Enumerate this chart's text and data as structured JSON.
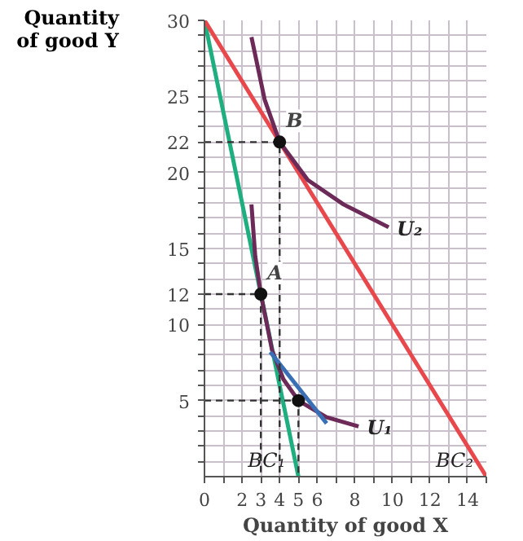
{
  "chart_data": {
    "type": "line",
    "xlabel": "Quantity of good X",
    "ylabel": "Quantity of good Y",
    "xlim": [
      0,
      15
    ],
    "ylim": [
      0,
      30
    ],
    "xticks": [
      {
        "value": 0,
        "label": "0"
      },
      {
        "value": 1,
        "label": null
      },
      2,
      3,
      4,
      5,
      6,
      {
        "value": 7,
        "label": null
      },
      8,
      {
        "value": 9,
        "label": null
      },
      10,
      {
        "value": 11,
        "label": null
      },
      12,
      {
        "value": 13,
        "label": null
      },
      14,
      {
        "value": 15,
        "label": null
      }
    ],
    "yticks": [
      {
        "value": 1,
        "label": null
      },
      {
        "value": 2,
        "label": null
      },
      {
        "value": 3,
        "label": null
      },
      {
        "value": 4,
        "label": null
      },
      5,
      {
        "value": 6,
        "label": null
      },
      {
        "value": 7,
        "label": null
      },
      {
        "value": 8,
        "label": null
      },
      {
        "value": 9,
        "label": null
      },
      10,
      {
        "value": 11,
        "label": null
      },
      12,
      {
        "value": 13,
        "label": null
      },
      {
        "value": 14,
        "label": null
      },
      15,
      {
        "value": 16,
        "label": null
      },
      {
        "value": 17,
        "label": null
      },
      {
        "value": 18,
        "label": null
      },
      {
        "value": 19,
        "label": null
      },
      20,
      {
        "value": 21,
        "label": null
      },
      22,
      {
        "value": 23,
        "label": null
      },
      {
        "value": 24,
        "label": null
      },
      25,
      {
        "value": 26,
        "label": null
      },
      {
        "value": 27,
        "label": null
      },
      {
        "value": 28,
        "label": null
      },
      {
        "value": 29,
        "label": null
      },
      30
    ],
    "grid": true,
    "series": [
      {
        "name": "BC₁",
        "color": "#1fae7f",
        "x": [
          0,
          5
        ],
        "values": [
          30,
          0
        ]
      },
      {
        "name": "BC₂",
        "color": "#e8474c",
        "x": [
          0,
          15
        ],
        "values": [
          30,
          0
        ]
      },
      {
        "name": "U₂",
        "color": "#6b2a57",
        "x": [
          2.5,
          3.2,
          4,
          5.5,
          7.4,
          9.8
        ],
        "values": [
          28.9,
          24.8,
          22,
          19.5,
          17.9,
          16.4
        ]
      },
      {
        "name": "U₁",
        "color": "#6b2a57",
        "x": [
          2.5,
          2.7,
          3,
          3.6,
          4.2,
          5,
          6.5,
          8.2
        ],
        "values": [
          17.9,
          14.5,
          12,
          8.3,
          6.4,
          5,
          3.9,
          3.3
        ]
      },
      {
        "color": "#3a6fb5",
        "x": [
          3.5,
          6.5
        ],
        "values": [
          8.2,
          3.5
        ]
      },
      {
        "color": "#333333",
        "line_style": "dashed",
        "x": [
          0,
          4,
          4
        ],
        "values": [
          22,
          22,
          0
        ]
      },
      {
        "color": "#333333",
        "line_style": "dashed",
        "x": [
          0,
          3,
          3
        ],
        "values": [
          12,
          12,
          0
        ]
      },
      {
        "color": "#333333",
        "line_style": "dashed",
        "x": [
          0,
          5,
          5
        ],
        "values": [
          5,
          5,
          0
        ]
      },
      {
        "type": "scatter",
        "color": "#111111",
        "x": [
          4,
          3,
          5
        ],
        "values": [
          22,
          12,
          5
        ]
      }
    ],
    "annotations": [
      {
        "text": "B",
        "x": 4,
        "y": 22
      },
      {
        "text": "A",
        "x": 3,
        "y": 12
      }
    ]
  }
}
